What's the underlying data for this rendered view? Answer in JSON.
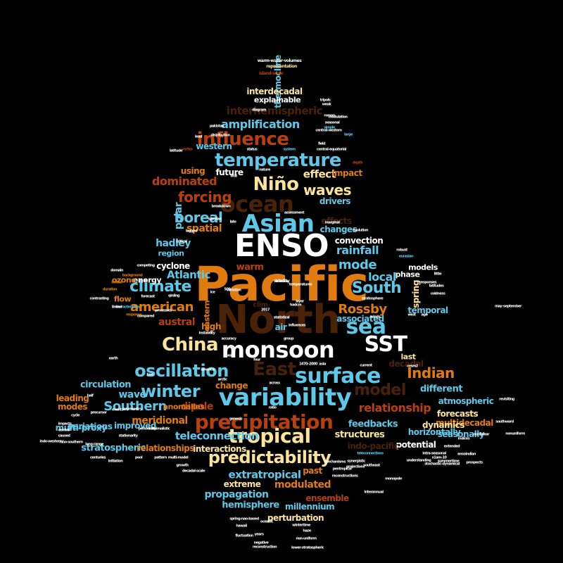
{
  "palette": {
    "background": "#000000",
    "sky": "#5ec8e8",
    "orange": "#e07b10",
    "brown": "#4a2208",
    "rust": "#b8400e",
    "cream": "#fbe39a",
    "white": "#ffffff",
    "gold": "#f5b94a"
  },
  "words": [
    {
      "text": "Pacific",
      "color": "orange"
    },
    {
      "text": "North",
      "color": "brown"
    },
    {
      "text": "ENSO",
      "color": "white"
    },
    {
      "text": "monsoon",
      "color": "white"
    },
    {
      "text": "SST",
      "color": "white"
    },
    {
      "text": "ocean",
      "color": "brown"
    },
    {
      "text": "Asian",
      "color": "sky"
    },
    {
      "text": "temperature",
      "color": "sky"
    },
    {
      "text": "sea",
      "color": "sky"
    },
    {
      "text": "Niño",
      "color": "cream"
    },
    {
      "text": "variability",
      "color": "sky"
    },
    {
      "text": "surface",
      "color": "sky"
    },
    {
      "text": "East",
      "color": "brown"
    },
    {
      "text": "precipitation",
      "color": "rust"
    },
    {
      "text": "China",
      "color": "cream"
    },
    {
      "text": "tropical",
      "color": "cream"
    },
    {
      "text": "influence",
      "color": "rust"
    },
    {
      "text": "climate",
      "color": "sky"
    },
    {
      "text": "South",
      "color": "sky"
    },
    {
      "text": "oscillation",
      "color": "sky"
    },
    {
      "text": "winter",
      "color": "sky"
    },
    {
      "text": "Southern",
      "color": "sky"
    },
    {
      "text": "model",
      "color": "brown"
    },
    {
      "text": "predictability",
      "color": "cream"
    },
    {
      "text": "Indian",
      "color": "orange"
    },
    {
      "text": "american",
      "color": "orange"
    },
    {
      "text": "Rossby",
      "color": "orange"
    },
    {
      "text": "forcing",
      "color": "rust"
    },
    {
      "text": "waves",
      "color": "cream"
    },
    {
      "text": "boreal",
      "color": "sky"
    },
    {
      "text": "amplification",
      "color": "sky"
    },
    {
      "text": "mode",
      "color": "sky"
    },
    {
      "text": "relationship",
      "color": "rust"
    },
    {
      "text": "dominated",
      "color": "rust"
    },
    {
      "text": "teleconnection",
      "color": "sky"
    },
    {
      "text": "Atlantic",
      "color": "sky"
    },
    {
      "text": "rainfall",
      "color": "sky"
    },
    {
      "text": "effect",
      "color": "cream"
    },
    {
      "text": "local",
      "color": "sky"
    },
    {
      "text": "spatial",
      "color": "orange"
    },
    {
      "text": "interhemispheric",
      "color": "brown"
    },
    {
      "text": "thermocline",
      "color": "sky"
    },
    {
      "text": "interdecadal",
      "color": "cream"
    },
    {
      "text": "explainable",
      "color": "white"
    },
    {
      "text": "hadley",
      "color": "sky"
    },
    {
      "text": "polar",
      "color": "sky"
    },
    {
      "text": "warm",
      "color": "rust"
    },
    {
      "text": "austral",
      "color": "rust"
    },
    {
      "text": "circulation",
      "color": "sky"
    },
    {
      "text": "wave",
      "color": "sky"
    },
    {
      "text": "dipole",
      "color": "rust"
    },
    {
      "text": "meridional",
      "color": "orange"
    },
    {
      "text": "different",
      "color": "sky"
    },
    {
      "text": "atmospheric",
      "color": "sky"
    },
    {
      "text": "feedbacks",
      "color": "sky"
    },
    {
      "text": "structures",
      "color": "cream"
    },
    {
      "text": "extratropical",
      "color": "sky"
    },
    {
      "text": "modulated",
      "color": "orange"
    },
    {
      "text": "propagation",
      "color": "sky"
    },
    {
      "text": "stratospheric",
      "color": "sky"
    },
    {
      "text": "interactions",
      "color": "cream"
    },
    {
      "text": "relationships",
      "color": "orange"
    },
    {
      "text": "multi-proxy",
      "color": "sky"
    },
    {
      "text": "variations",
      "color": "sky"
    },
    {
      "text": "improved",
      "color": "sky"
    },
    {
      "text": "leading",
      "color": "orange"
    },
    {
      "text": "modes",
      "color": "orange"
    },
    {
      "text": "temporal",
      "color": "sky"
    },
    {
      "text": "associated",
      "color": "sky"
    },
    {
      "text": "phase",
      "color": "white"
    },
    {
      "text": "multidecadal",
      "color": "orange"
    },
    {
      "text": "forecasts",
      "color": "cream"
    },
    {
      "text": "dynamics",
      "color": "cream"
    },
    {
      "text": "seasonally",
      "color": "sky"
    },
    {
      "text": "potential",
      "color": "white"
    },
    {
      "text": "indo-pacific",
      "color": "brown"
    },
    {
      "text": "hemisphere",
      "color": "sky"
    },
    {
      "text": "millennium",
      "color": "sky"
    },
    {
      "text": "ensemble",
      "color": "rust"
    },
    {
      "text": "perturbation",
      "color": "cream"
    },
    {
      "text": "extreme",
      "color": "cream"
    },
    {
      "text": "past",
      "color": "orange"
    },
    {
      "text": "change",
      "color": "orange"
    },
    {
      "text": "anomalies",
      "color": "orange"
    },
    {
      "text": "horizontally",
      "color": "sky"
    },
    {
      "text": "decadal",
      "color": "brown"
    },
    {
      "text": "spring",
      "color": "cream"
    },
    {
      "text": "models",
      "color": "white"
    },
    {
      "text": "convection",
      "color": "white"
    },
    {
      "text": "changes",
      "color": "sky"
    },
    {
      "text": "effects",
      "color": "brown"
    },
    {
      "text": "drivers",
      "color": "sky"
    },
    {
      "text": "impact",
      "color": "orange"
    },
    {
      "text": "future",
      "color": "white"
    },
    {
      "text": "using",
      "color": "orange"
    },
    {
      "text": "western",
      "color": "sky"
    },
    {
      "text": "cyclone",
      "color": "white"
    },
    {
      "text": "region",
      "color": "sky"
    },
    {
      "text": "energy",
      "color": "white"
    },
    {
      "text": "ozone",
      "color": "orange"
    },
    {
      "text": "flow",
      "color": "orange"
    },
    {
      "text": "high",
      "color": "orange"
    },
    {
      "text": "air",
      "color": "sky"
    },
    {
      "text": "eastern",
      "color": "orange"
    },
    {
      "text": "last",
      "color": "cream"
    },
    {
      "text": "clim",
      "color": "brown"
    },
    {
      "text": "warm-water-volumes",
      "color": "white"
    },
    {
      "text": "representation",
      "color": "cream"
    },
    {
      "text": "island-scale",
      "color": "rust"
    },
    {
      "text": "tripols",
      "color": "white"
    },
    {
      "text": "central-western",
      "color": "white"
    },
    {
      "text": "modulation",
      "color": "white"
    },
    {
      "text": "seasonal",
      "color": "white"
    },
    {
      "text": "field",
      "color": "white"
    },
    {
      "text": "pakistan",
      "color": "white"
    },
    {
      "text": "simple",
      "color": "sky"
    },
    {
      "text": "large",
      "color": "sky"
    },
    {
      "text": "distribution",
      "color": "white"
    },
    {
      "text": "central-equatorial",
      "color": "white"
    },
    {
      "text": "system",
      "color": "sky"
    },
    {
      "text": "status",
      "color": "white"
    },
    {
      "text": "latitude",
      "color": "white"
    },
    {
      "text": "vortex",
      "color": "rust"
    },
    {
      "text": "depth",
      "color": "rust"
    },
    {
      "text": "nature",
      "color": "white"
    },
    {
      "text": "oral",
      "color": "white"
    },
    {
      "text": "breakdown",
      "color": "white"
    },
    {
      "text": "siberian",
      "color": "white"
    },
    {
      "text": "late",
      "color": "white"
    },
    {
      "text": "assessment",
      "color": "white"
    },
    {
      "text": "marginal",
      "color": "white"
    },
    {
      "text": "evolution",
      "color": "white"
    },
    {
      "text": "lagged",
      "color": "white"
    },
    {
      "text": "critical",
      "color": "white"
    },
    {
      "text": "robust",
      "color": "white"
    },
    {
      "text": "eurasian",
      "color": "sky"
    },
    {
      "text": "competing",
      "color": "white"
    },
    {
      "text": "domain",
      "color": "white"
    },
    {
      "text": "background",
      "color": "orange"
    },
    {
      "text": "united",
      "color": "orange"
    },
    {
      "text": "duration",
      "color": "orange"
    },
    {
      "text": "contrasting",
      "color": "white"
    },
    {
      "text": "characteristics",
      "color": "sky"
    },
    {
      "text": "qinling",
      "color": "white"
    },
    {
      "text": "forecast",
      "color": "white"
    },
    {
      "text": "processes",
      "color": "white"
    },
    {
      "text": "response",
      "color": "orange"
    },
    {
      "text": "compared",
      "color": "white"
    },
    {
      "text": "responses",
      "color": "white"
    },
    {
      "text": "little",
      "color": "white"
    },
    {
      "text": "coldness",
      "color": "white"
    },
    {
      "text": "winds",
      "color": "white"
    },
    {
      "text": "layer",
      "color": "white"
    },
    {
      "text": "variation",
      "color": "white"
    },
    {
      "text": "instability",
      "color": "white"
    },
    {
      "text": "accuracy",
      "color": "white"
    },
    {
      "text": "group",
      "color": "white"
    },
    {
      "text": "current",
      "color": "white"
    },
    {
      "text": "cesm2",
      "color": "white"
    },
    {
      "text": "asia",
      "color": "white"
    },
    {
      "text": "1470–2000",
      "color": "white"
    },
    {
      "text": "arctic",
      "color": "white"
    },
    {
      "text": "across",
      "color": "white"
    },
    {
      "text": "america",
      "color": "white"
    },
    {
      "text": "two",
      "color": "white"
    },
    {
      "text": "half",
      "color": "white"
    },
    {
      "text": "events",
      "color": "white"
    },
    {
      "text": "asymmetry",
      "color": "white"
    },
    {
      "text": "precursor",
      "color": "white"
    },
    {
      "text": "cycle",
      "color": "white"
    },
    {
      "text": "impacts",
      "color": "white"
    },
    {
      "text": "central",
      "color": "white"
    },
    {
      "text": "caused",
      "color": "white"
    },
    {
      "text": "indo-western",
      "color": "white"
    },
    {
      "text": "niño-southern",
      "color": "white"
    },
    {
      "text": "long-range",
      "color": "white"
    },
    {
      "text": "stationarity",
      "color": "white"
    },
    {
      "text": "periodicity",
      "color": "white"
    },
    {
      "text": "minimalistic",
      "color": "white"
    },
    {
      "text": "genesis",
      "color": "white"
    },
    {
      "text": "ratio",
      "color": "white"
    },
    {
      "text": "centuries",
      "color": "white"
    },
    {
      "text": "pool",
      "color": "white"
    },
    {
      "text": "pattern",
      "color": "white"
    },
    {
      "text": "multi-model",
      "color": "white"
    },
    {
      "text": "initiation",
      "color": "white"
    },
    {
      "text": "growth",
      "color": "white"
    },
    {
      "text": "decadal-scale",
      "color": "white"
    },
    {
      "text": "southeast",
      "color": "white"
    },
    {
      "text": "mechanisms",
      "color": "white"
    },
    {
      "text": "reconstructions",
      "color": "white"
    },
    {
      "text": "monopole",
      "color": "white"
    },
    {
      "text": "pentropical",
      "color": "white"
    },
    {
      "text": "wintertime",
      "color": "white"
    },
    {
      "text": "spring-nao-based",
      "color": "white"
    },
    {
      "text": "oceanic",
      "color": "white"
    },
    {
      "text": "hawaii",
      "color": "white"
    },
    {
      "text": "fluctuation",
      "color": "white"
    },
    {
      "text": "years",
      "color": "white"
    },
    {
      "text": "haze",
      "color": "white"
    },
    {
      "text": "negative",
      "color": "white"
    },
    {
      "text": "non-uniform",
      "color": "white"
    },
    {
      "text": "reconstruction",
      "color": "white"
    },
    {
      "text": "lower-stratospheric",
      "color": "white"
    },
    {
      "text": "projections",
      "color": "white"
    },
    {
      "text": "synergistic",
      "color": "white"
    },
    {
      "text": "teleconnections",
      "color": "sky"
    },
    {
      "text": "interannual",
      "color": "white"
    },
    {
      "text": "intra-seasonal",
      "color": "white"
    },
    {
      "text": "extended",
      "color": "white"
    },
    {
      "text": "x1am-10",
      "color": "white"
    },
    {
      "text": "ensoindian",
      "color": "white"
    },
    {
      "text": "summertime",
      "color": "white"
    },
    {
      "text": "understanding",
      "color": "white"
    },
    {
      "text": "stochastic-dynamical",
      "color": "white"
    },
    {
      "text": "nonlinear",
      "color": "white"
    },
    {
      "text": "southward",
      "color": "white"
    },
    {
      "text": "indices",
      "color": "white"
    },
    {
      "text": "nonuniform",
      "color": "white"
    },
    {
      "text": "prospects",
      "color": "white"
    },
    {
      "text": "revisiting",
      "color": "white"
    },
    {
      "text": "may–september",
      "color": "white"
    },
    {
      "text": "influences",
      "color": "white"
    },
    {
      "text": "statistical",
      "color": "white"
    },
    {
      "text": "temperatures",
      "color": "white"
    },
    {
      "text": "hadcm",
      "color": "white"
    },
    {
      "text": "2017",
      "color": "white"
    },
    {
      "text": "500",
      "color": "white"
    },
    {
      "text": "ice",
      "color": "white"
    },
    {
      "text": "four",
      "color": "white"
    },
    {
      "text": "sea",
      "color": "white"
    },
    {
      "text": "linked",
      "color": "white"
    },
    {
      "text": "earth",
      "color": "white"
    },
    {
      "text": "ago",
      "color": "white"
    },
    {
      "text": "west",
      "color": "white"
    },
    {
      "text": "stratosphere",
      "color": "white"
    },
    {
      "text": "latitudes",
      "color": "white"
    },
    {
      "text": "weak",
      "color": "white"
    },
    {
      "text": "roman",
      "color": "white"
    },
    {
      "text": "diagram",
      "color": "white"
    },
    {
      "text": "lead",
      "color": "white"
    },
    {
      "text": "tracks",
      "color": "white"
    },
    {
      "text": "velocity",
      "color": "white"
    }
  ]
}
